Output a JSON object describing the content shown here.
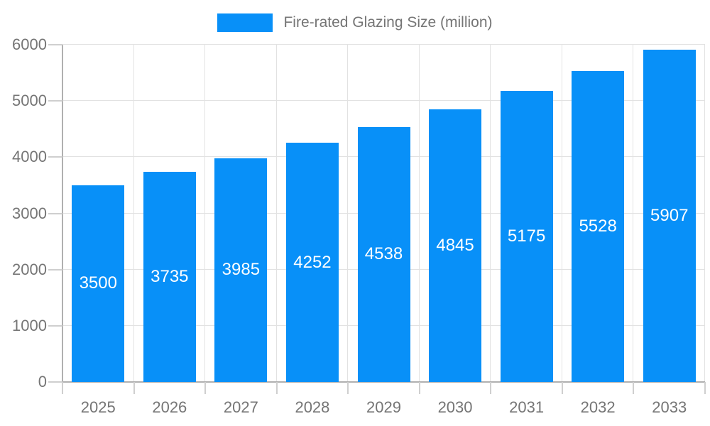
{
  "legend": {
    "label": "Fire-rated Glazing Size (million)"
  },
  "chart_data": {
    "type": "bar",
    "title": "Fire-rated Glazing Size (million)",
    "series_name": "Fire-rated Glazing Size (million)",
    "categories": [
      "2025",
      "2026",
      "2027",
      "2028",
      "2029",
      "2030",
      "2031",
      "2032",
      "2033"
    ],
    "values": [
      3500,
      3735,
      3985,
      4252,
      4538,
      4845,
      5175,
      5528,
      5907
    ],
    "xlabel": "",
    "ylabel": "",
    "ylim": [
      0,
      6000
    ],
    "yticks": [
      0,
      1000,
      2000,
      3000,
      4000,
      5000,
      6000
    ],
    "grid": true,
    "legend_position": "top",
    "value_labels": "inside-center"
  },
  "colors": {
    "bar": "#0890f8",
    "grid": "#e2e2e2",
    "axis": "#b0b0b0",
    "tick": "#cfcfcf",
    "text": "#757575",
    "value_label": "#ffffff",
    "background": "#ffffff"
  }
}
